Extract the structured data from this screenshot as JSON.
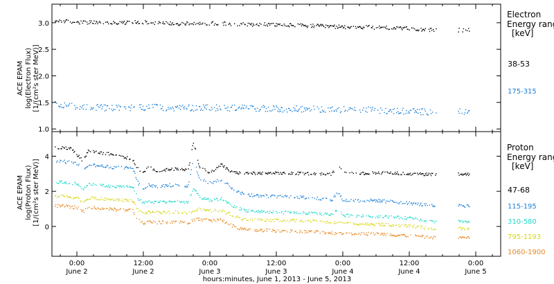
{
  "x_axis": {
    "title": "hours:minutes, June  1, 2013 - June  5, 2013",
    "ticks": [
      {
        "hour": 0,
        "time": "0:00",
        "date": "June 2"
      },
      {
        "hour": 12,
        "time": "12:00",
        "date": "June 2"
      },
      {
        "hour": 24,
        "time": "0:00",
        "date": "June 3"
      },
      {
        "hour": 36,
        "time": "12:00",
        "date": "June 3"
      },
      {
        "hour": 48,
        "time": "0:00",
        "date": "June 4"
      },
      {
        "hour": 60,
        "time": "12:00",
        "date": "June 4"
      },
      {
        "hour": 72,
        "time": "0:00",
        "date": "June 5"
      }
    ]
  },
  "chart_data": [
    {
      "type": "scatter",
      "title": "",
      "ylabel_line1": "ACE EPAM",
      "ylabel_line2": "log(Electron Flux)",
      "ylabel_line3": "[1/(cm²s ster MeV)]",
      "ylim": [
        0.95,
        3.35
      ],
      "yticks": [
        "1.0",
        "1.5",
        "2.0",
        "2.5",
        "3.0"
      ],
      "ytick_values": [
        1.0,
        1.5,
        2.0,
        2.5,
        3.0
      ],
      "legend_title_line1": "Electron",
      "legend_title_line2": "Energy range",
      "legend_unit": "[keV]",
      "series": [
        {
          "name": "38-53",
          "color": "#000000",
          "noise": 0.035,
          "x": [
            -3,
            0,
            6,
            12,
            18,
            24,
            30,
            36,
            42,
            48,
            54,
            60,
            64
          ],
          "y": [
            3.04,
            3.02,
            3.0,
            3.02,
            2.99,
            3.0,
            2.98,
            2.97,
            2.95,
            2.93,
            2.92,
            2.9,
            2.87
          ]
        },
        {
          "name": "175-315",
          "color": "#1a7fd6",
          "noise": 0.06,
          "x": [
            -3,
            0,
            6,
            12,
            18,
            24,
            30,
            36,
            42,
            48,
            54,
            60,
            64
          ],
          "y": [
            1.47,
            1.43,
            1.4,
            1.42,
            1.4,
            1.41,
            1.4,
            1.39,
            1.38,
            1.37,
            1.36,
            1.34,
            1.33
          ]
        }
      ]
    },
    {
      "type": "scatter",
      "title": "",
      "ylabel_line1": "ACE EPAM",
      "ylabel_line2": "log(Proton Flux)",
      "ylabel_line3": "[1/(cm²s ster MeV)]",
      "ylim": [
        -1.7,
        5.4
      ],
      "yticks": [
        "0",
        "2",
        "4"
      ],
      "ytick_values": [
        0,
        2,
        4
      ],
      "legend_title_line1": "Proton",
      "legend_title_line2": "Energy range",
      "legend_unit": "[keV]",
      "series": [
        {
          "name": "47-68",
          "color": "#000000",
          "noise": 0.08,
          "x": [
            -3,
            -1,
            0,
            1,
            2,
            4,
            6,
            8,
            10,
            11,
            12,
            13,
            14,
            16,
            18,
            20,
            21,
            22,
            24,
            26,
            27,
            28,
            30,
            34,
            40,
            46,
            47,
            48,
            52,
            56,
            60,
            64
          ],
          "y": [
            4.5,
            4.45,
            4.1,
            3.75,
            4.35,
            4.2,
            4.15,
            4.05,
            3.8,
            3.3,
            3.1,
            3.5,
            3.2,
            3.25,
            3.3,
            3.2,
            4.9,
            3.4,
            3.1,
            3.55,
            3.3,
            3.1,
            3.05,
            3.05,
            3.05,
            3.0,
            3.55,
            3.05,
            3.05,
            3.1,
            3.0,
            3.0
          ]
        },
        {
          "name": "115-195",
          "color": "#1a7fd6",
          "noise": 0.09,
          "x": [
            -3,
            0,
            1,
            2,
            6,
            10,
            11,
            12,
            13,
            14,
            18,
            20,
            21,
            22,
            24,
            26,
            28,
            30,
            34,
            40,
            46,
            47,
            48,
            54,
            60,
            64
          ],
          "y": [
            3.75,
            3.6,
            3.25,
            3.55,
            3.4,
            3.35,
            2.5,
            2.1,
            2.4,
            2.3,
            2.4,
            2.3,
            3.9,
            2.8,
            2.5,
            2.7,
            2.2,
            1.85,
            1.75,
            1.7,
            1.55,
            2.0,
            1.5,
            1.5,
            1.35,
            1.2
          ]
        },
        {
          "name": "310-580",
          "color": "#1fd9c9",
          "noise": 0.08,
          "x": [
            -3,
            0,
            1,
            2,
            6,
            10,
            11,
            12,
            13,
            14,
            18,
            20,
            21,
            22,
            24,
            26,
            28,
            30,
            34,
            40,
            46,
            47,
            48,
            54,
            60,
            64
          ],
          "y": [
            2.55,
            2.45,
            2.15,
            2.45,
            2.3,
            2.3,
            1.6,
            1.35,
            1.45,
            1.4,
            1.45,
            1.4,
            2.2,
            1.7,
            1.5,
            1.6,
            1.2,
            0.95,
            0.85,
            0.8,
            0.7,
            1.0,
            0.65,
            0.6,
            0.5,
            0.3
          ]
        },
        {
          "name": "795-1193",
          "color": "#d6d612",
          "noise": 0.08,
          "x": [
            -3,
            0,
            1,
            2,
            6,
            10,
            11,
            12,
            13,
            14,
            18,
            20,
            22,
            24,
            26,
            28,
            30,
            34,
            40,
            46,
            48,
            54,
            60,
            64
          ],
          "y": [
            1.75,
            1.65,
            1.4,
            1.65,
            1.55,
            1.5,
            0.95,
            0.75,
            0.85,
            0.8,
            0.85,
            0.8,
            1.0,
            0.9,
            0.95,
            0.65,
            0.45,
            0.4,
            0.35,
            0.25,
            0.2,
            0.15,
            0.05,
            -0.1
          ]
        },
        {
          "name": "1060-1900",
          "color": "#e8871e",
          "noise": 0.09,
          "x": [
            -3,
            0,
            1,
            2,
            6,
            10,
            11,
            12,
            13,
            14,
            18,
            20,
            22,
            24,
            26,
            28,
            30,
            34,
            40,
            46,
            48,
            54,
            60,
            64
          ],
          "y": [
            1.2,
            1.1,
            0.85,
            1.1,
            1.0,
            0.95,
            0.4,
            0.2,
            0.3,
            0.25,
            0.3,
            0.25,
            0.45,
            0.35,
            0.4,
            0.05,
            -0.15,
            -0.2,
            -0.25,
            -0.35,
            -0.35,
            -0.4,
            -0.5,
            -0.6
          ]
        }
      ]
    }
  ]
}
